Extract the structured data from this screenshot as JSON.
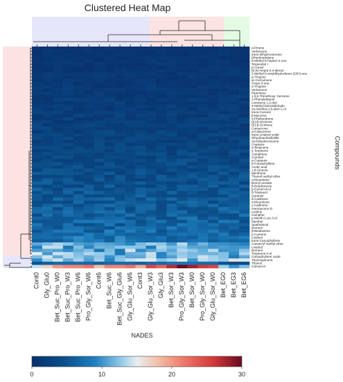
{
  "chart_data": {
    "type": "heatmap",
    "title": "Clustered Heat Map",
    "xlabel": "NADES",
    "ylabel": "Compounds",
    "columns": [
      "Cont0",
      "Gly_Glu0",
      "Bet_Suc_Pro_W0",
      "Bet_Suc_Pro_W3",
      "Bet_Suc_Pro_W6",
      "Pro_Gly_Sor_W6",
      "Cont6",
      "Bet_Suc_W6",
      "Bet_Suc_Gly_Glu6",
      "Gly_Glu_Sor_W6",
      "Cont3",
      "Gly_Glu_Sor_W3",
      "Gly_Glu3",
      "Bet_Sor_W3",
      "Pro_Gly_Sor_W3",
      "Bet_Sor_W0",
      "Pro_Gly_Sor_W0",
      "Gly_Glu_Sor_W0",
      "Bet_EG0",
      "Bet_EG3",
      "Bet_EG6"
    ],
    "rows": [
      "α-Pinene",
      "Verbenene",
      "trans-Dihydrocarvone",
      "Dihydroedulane",
      "6-Methyl-5-hepten-2-one",
      "Terpendiol I",
      "p-Cresol",
      "(E,E)-Hepta-2,4-dienal",
      "2-Methyl-5-vinyldihydrofuran-2(3H)-one",
      "p-Thujone",
      "ar-Curcumene",
      "Octan-3-one",
      "α-Thujone",
      "Verbenone",
      "Piperitone",
      "1,3,5-Trimethoxy- benzene",
      "2-Phenylethanol",
      "Limonene 1,2-diol",
      "4-Methyl-benzaldehyde",
      "cis-Mentha-2,8-dien-1-ol",
      "trans-Carveol",
      "β-Myrcene",
      "α-Phellandrene",
      "(Z)-β-Ocimene",
      "(E)-β-Ocimene",
      "Carvacrone",
      "α-Calacorene",
      "trans-Linalool oxide",
      "Dihydroactinidiolide",
      "cis-Dihydrocarvone",
      "Cryptone",
      "α-Terpinene",
      "γ-Terpinene",
      "Camphene",
      "Cuminal",
      "α-Copaene",
      "β-Caryophyllene",
      "Acetic acid",
      "1,8-Cineole",
      "Menthone",
      "Thymol methyl ether",
      "α-Muurolene",
      "Bornyl acetate",
      "β-Bourbonene",
      "p-Cymen-8-ol",
      "δ-Terpineol",
      "Geraniol",
      "δ-Cadinene",
      "α-Muurolene",
      "γ-Cadinene",
      "Germacrene D",
      "Ledene",
      "Camphor",
      "p-Menth-1-en-3-ol",
      "Menthol",
      "Spathulenol",
      "Borneol",
      "β-Bisabolene",
      "p-Cymene",
      "Linalool",
      "trans-Caryophyllene",
      "Carvacryl methyl ether",
      "Linalool",
      "Borneol",
      "Terpinene-4-ol",
      "Caryophyllene oxide",
      "Thymoquinone",
      "Thymol",
      "Carvacrol"
    ],
    "values_by_row_trend": "most compounds near 0-5; Carvacrol row up to ~30",
    "carvacrol": [
      14,
      17,
      20,
      21,
      21,
      22,
      18,
      21,
      21,
      22,
      19,
      25,
      23,
      27,
      30,
      28,
      26,
      25,
      13,
      10,
      12
    ],
    "thymol": [
      5,
      6,
      7,
      7,
      7,
      7,
      6,
      7,
      7,
      7,
      6,
      7,
      7,
      8,
      8,
      8,
      7,
      7,
      5,
      4,
      4
    ],
    "colorscale": {
      "min": 0,
      "max": 30,
      "ticks": [
        0,
        10,
        20,
        30
      ]
    },
    "row_cluster_colors": [
      "#fbe3e3",
      "#e6e6fb"
    ],
    "col_cluster_colors": [
      "#e6e6fb",
      "#fbe3e3",
      "#e3fbe3"
    ]
  }
}
